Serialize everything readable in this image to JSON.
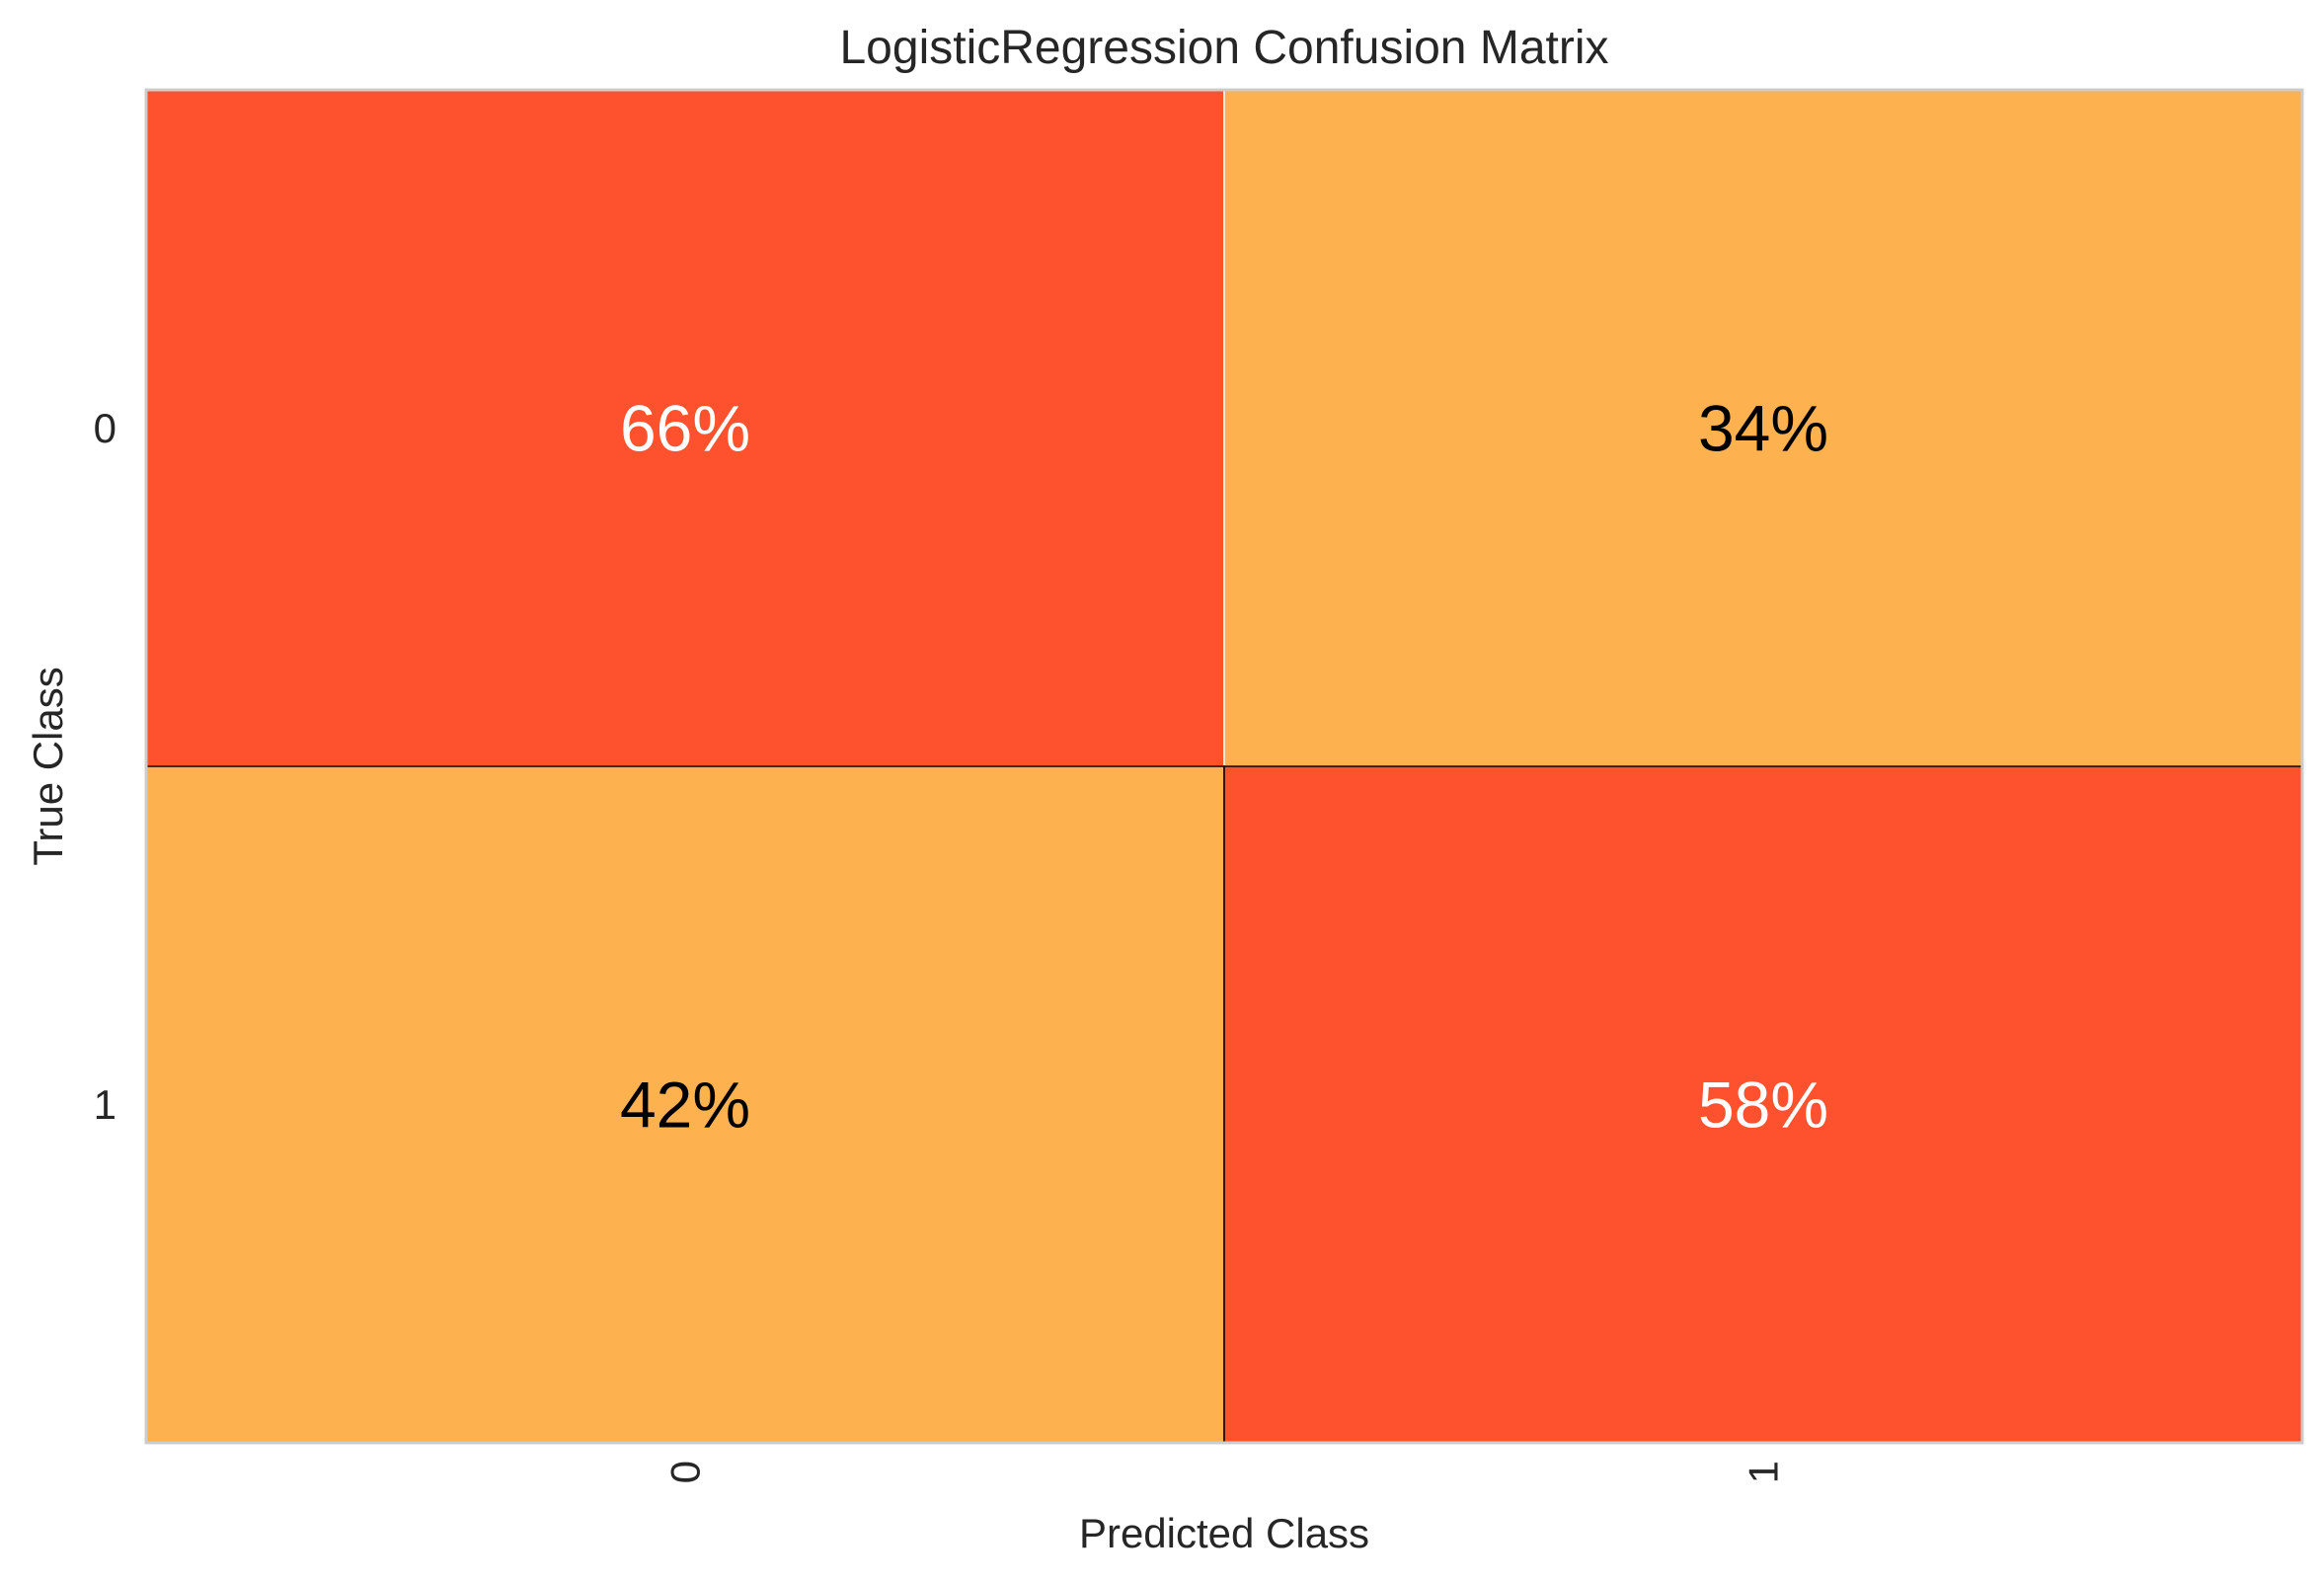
{
  "chart_data": {
    "type": "heatmap",
    "title": "LogisticRegression Confusion Matrix",
    "xlabel": "Predicted Class",
    "ylabel": "True Class",
    "x_categories": [
      "0",
      "1"
    ],
    "y_categories": [
      "0",
      "1"
    ],
    "values": [
      [
        66,
        34
      ],
      [
        42,
        58
      ]
    ],
    "cell_labels": [
      [
        "66%",
        "34%"
      ],
      [
        "42%",
        "58%"
      ]
    ],
    "grid": false,
    "colors": {
      "high": "#fe512d",
      "low": "#fdb14f",
      "text_on_high": "#ffffff",
      "text_on_low": "#000000",
      "frame": "#cccccc"
    }
  }
}
